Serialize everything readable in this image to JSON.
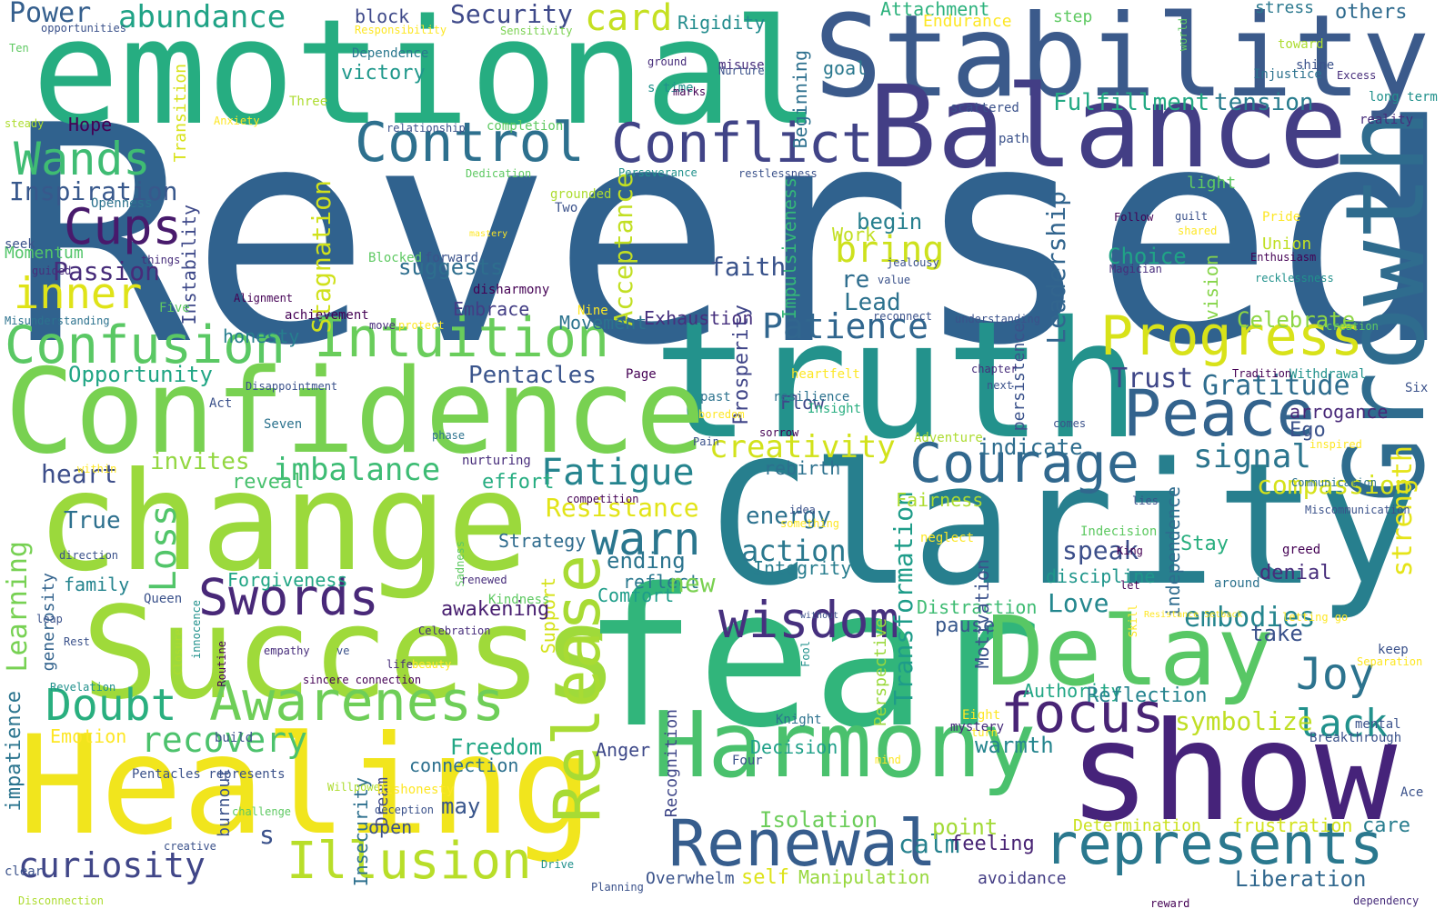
{
  "palette": {
    "background": "#ffffff",
    "shades": [
      "#440154",
      "#472d7b",
      "#3b528b",
      "#2c728e",
      "#21918c",
      "#28ae80",
      "#5ec962",
      "#addc30",
      "#fde725"
    ]
  },
  "words": [
    {
      "text": "Reversed",
      "color": "#30628e"
    },
    {
      "text": "emotional",
      "color": "#26ad81"
    },
    {
      "text": "Stability",
      "color": "#3b5a8b"
    },
    {
      "text": "Balance",
      "color": "#433e85"
    },
    {
      "text": "truth",
      "color": "#23928c"
    },
    {
      "text": "Growth",
      "color": "#2f6c8e"
    },
    {
      "text": "Clarity",
      "color": "#277f8e"
    },
    {
      "text": "Confidence",
      "color": "#78d151"
    },
    {
      "text": "change",
      "color": "#9bd93c"
    },
    {
      "text": "Success",
      "color": "#9fda3a"
    },
    {
      "text": "fear",
      "color": "#31b57b"
    },
    {
      "text": "show",
      "color": "#46237a"
    },
    {
      "text": "Healing",
      "color": "#f1e51d"
    },
    {
      "text": "Harmony",
      "color": "#4ac16d"
    },
    {
      "text": "Delay",
      "color": "#58c765"
    },
    {
      "text": "Control",
      "color": "#2d708e"
    },
    {
      "text": "Conflict",
      "color": "#414487"
    },
    {
      "text": "Peace",
      "color": "#33638d"
    },
    {
      "text": "Courage",
      "color": "#31688e"
    },
    {
      "text": "Intuition",
      "color": "#69cd5b"
    },
    {
      "text": "Confusion",
      "color": "#5ac864"
    },
    {
      "text": "Progress",
      "color": "#d8e219"
    },
    {
      "text": "Awareness",
      "color": "#6ece58"
    },
    {
      "text": "Renewal",
      "color": "#365d8d"
    },
    {
      "text": "represents",
      "color": "#2a788e"
    },
    {
      "text": "wisdom",
      "color": "#46307e"
    },
    {
      "text": "Swords",
      "color": "#482878"
    },
    {
      "text": "Release",
      "color": "#a8db34"
    },
    {
      "text": "Illusion",
      "color": "#b8de29"
    },
    {
      "text": "Doubt",
      "color": "#29af7f"
    },
    {
      "text": "focus",
      "color": "#482475"
    },
    {
      "text": "Cups",
      "color": "#481a6c"
    },
    {
      "text": "Wands",
      "color": "#3fbc73"
    },
    {
      "text": "inner",
      "color": "#dfe318"
    },
    {
      "text": "Patience",
      "color": "#31668e"
    },
    {
      "text": "Joy",
      "color": "#2c738e"
    },
    {
      "text": "warn",
      "color": "#2a768e"
    },
    {
      "text": "Fatigue",
      "color": "#25848e"
    },
    {
      "text": "curiosity",
      "color": "#404688"
    },
    {
      "text": "recovery",
      "color": "#4cc26c"
    },
    {
      "text": "abundance",
      "color": "#20a386"
    },
    {
      "text": "creativity",
      "color": "#d2e21b"
    },
    {
      "text": "imbalance",
      "color": "#3dbc74"
    },
    {
      "text": "lack",
      "color": "#21918c"
    },
    {
      "text": "Learning",
      "color": "#77d153"
    },
    {
      "text": "Loss",
      "color": "#52c569"
    },
    {
      "text": "Transformation",
      "color": "#1e9c89"
    },
    {
      "text": "Stagnation",
      "color": "#d0e11c"
    },
    {
      "text": "Acceptance",
      "color": "#c2df23"
    },
    {
      "text": "embodies",
      "color": "#25858e"
    },
    {
      "text": "bring",
      "color": "#cde11d"
    },
    {
      "text": "signal",
      "color": "#2b758e"
    },
    {
      "text": "Leadership",
      "color": "#32658e"
    },
    {
      "text": "Gratitude",
      "color": "#2e6d8e"
    },
    {
      "text": "Security",
      "color": "#3e4989"
    },
    {
      "text": "card",
      "color": "#c5e021"
    },
    {
      "text": "Fulfillment",
      "color": "#23a983"
    },
    {
      "text": "Inspiration",
      "color": "#38588c"
    },
    {
      "text": "compassion",
      "color": "#d5e21a"
    },
    {
      "text": "strength",
      "color": "#e5e419"
    },
    {
      "text": "symbolize",
      "color": "#c0df25"
    },
    {
      "text": "Resistance",
      "color": "#e2e418"
    },
    {
      "text": "Opportunity",
      "color": "#21a685"
    },
    {
      "text": "Pentacles",
      "color": "#3a548c"
    },
    {
      "text": "Passion",
      "color": "#472c7a"
    },
    {
      "text": "action",
      "color": "#2a788e"
    },
    {
      "text": "speak",
      "color": "#3c4f8a"
    },
    {
      "text": "Trust",
      "color": "#3f4788"
    },
    {
      "text": "Celebrate",
      "color": "#8ed645"
    },
    {
      "text": "Isolation",
      "color": "#6ccd5a"
    },
    {
      "text": "heart",
      "color": "#3d4e8a"
    },
    {
      "text": "Freedom",
      "color": "#22a785"
    },
    {
      "text": "impatience",
      "color": "#2b748e"
    },
    {
      "text": "Love",
      "color": "#24878e"
    },
    {
      "text": "Emotion",
      "color": "#fde725"
    },
    {
      "text": "Power",
      "color": "#355f8d"
    },
    {
      "text": "Momentum",
      "color": "#52c569"
    },
    {
      "text": "Hope",
      "color": "#440154"
    },
    {
      "text": "victory",
      "color": "#1f988b"
    },
    {
      "text": "Rigidity",
      "color": "#228c8d"
    },
    {
      "text": "tension",
      "color": "#287c8e"
    },
    {
      "text": "Attachment",
      "color": "#2db27d"
    },
    {
      "text": "Endurance",
      "color": "#fde725"
    },
    {
      "text": "stress",
      "color": "#2a788e"
    },
    {
      "text": "others",
      "color": "#2f6b8e"
    },
    {
      "text": "Choice",
      "color": "#20a386"
    },
    {
      "text": "vision",
      "color": "#86d549"
    },
    {
      "text": "Authority",
      "color": "#22a785"
    },
    {
      "text": "Reflection",
      "color": "#25838e"
    },
    {
      "text": "Liberation",
      "color": "#31688e"
    },
    {
      "text": "frustration",
      "color": "#d2e21b"
    },
    {
      "text": "care",
      "color": "#287d8e"
    },
    {
      "text": "Determination",
      "color": "#cae11f"
    },
    {
      "text": "Manipulation",
      "color": "#98d83e"
    },
    {
      "text": "avoidance",
      "color": "#433d84"
    },
    {
      "text": "Overwhelm",
      "color": "#3a538b"
    },
    {
      "text": "calm",
      "color": "#26818e"
    },
    {
      "text": "point",
      "color": "#a2da37"
    },
    {
      "text": "feeling",
      "color": "#482374"
    },
    {
      "text": "self",
      "color": "#dde318"
    },
    {
      "text": "Prosperity",
      "color": "#404588"
    },
    {
      "text": "Impulsiveness",
      "color": "#35b779"
    },
    {
      "text": "energy",
      "color": "#2c718e"
    },
    {
      "text": "ending",
      "color": "#2b748e"
    },
    {
      "text": "faith",
      "color": "#3a538b"
    },
    {
      "text": "Flow",
      "color": "#3f4889"
    },
    {
      "text": "rebirth",
      "color": "#2c718e"
    },
    {
      "text": "Strategy",
      "color": "#2f6c8e"
    },
    {
      "text": "Support",
      "color": "#d5e21a"
    },
    {
      "text": "reveal",
      "color": "#48c16e"
    },
    {
      "text": "invites",
      "color": "#93d741"
    },
    {
      "text": "effort",
      "color": "#26ad81"
    },
    {
      "text": "Embrace",
      "color": "#433e85"
    },
    {
      "text": "Movement",
      "color": "#2c738e"
    },
    {
      "text": "Exhaustion",
      "color": "#46307e"
    },
    {
      "text": "honesty",
      "color": "#277e8e"
    },
    {
      "text": "family",
      "color": "#25848e"
    },
    {
      "text": "generosity",
      "color": "#33638d"
    },
    {
      "text": "Forgiveness",
      "color": "#21a685"
    },
    {
      "text": "awakening",
      "color": "#481f70"
    },
    {
      "text": "reflect",
      "color": "#2a788e"
    },
    {
      "text": "Comfort",
      "color": "#1e9d89"
    },
    {
      "text": "new",
      "color": "#7ad151"
    },
    {
      "text": "True",
      "color": "#2d708e"
    },
    {
      "text": "may",
      "color": "#39568c"
    },
    {
      "text": "connection",
      "color": "#2d708e"
    },
    {
      "text": "Anger",
      "color": "#3e4989"
    },
    {
      "text": "Decision",
      "color": "#1fa088"
    },
    {
      "text": "Recognition",
      "color": "#3f4788"
    },
    {
      "text": "warmth",
      "color": "#25858e"
    },
    {
      "text": "open",
      "color": "#3b528b"
    },
    {
      "text": "Insecurity",
      "color": "#2d708e"
    },
    {
      "text": "burnout",
      "color": "#3b528b"
    },
    {
      "text": "Dream",
      "color": "#3e4989"
    },
    {
      "text": "Integrity",
      "color": "#287d8e"
    },
    {
      "text": "pause",
      "color": "#38588c"
    },
    {
      "text": "take",
      "color": "#3b528b"
    },
    {
      "text": "Distraction",
      "color": "#3fbc73"
    },
    {
      "text": "Motivation",
      "color": "#3b528b"
    },
    {
      "text": "discipline",
      "color": "#1f968b"
    },
    {
      "text": "independence",
      "color": "#2f6c8e"
    },
    {
      "text": "Stay",
      "color": "#29af7f"
    },
    {
      "text": "denial",
      "color": "#472d7b"
    },
    {
      "text": "Perspective",
      "color": "#9bd93c"
    },
    {
      "text": "Fairness",
      "color": "#addc30"
    },
    {
      "text": "indicate",
      "color": "#2e6d8e"
    },
    {
      "text": "persistence",
      "color": "#3b528b"
    },
    {
      "text": "arrogance",
      "color": "#482878"
    },
    {
      "text": "Ego",
      "color": "#3b528b"
    },
    {
      "text": "begin",
      "color": "#277f8e"
    },
    {
      "text": "Work",
      "color": "#c2df23"
    },
    {
      "text": "re",
      "color": "#2e6d8e"
    },
    {
      "text": "Lead",
      "color": "#2c728e"
    },
    {
      "text": "suggests",
      "color": "#2e6e8e"
    },
    {
      "text": "Instability",
      "color": "#3e4989"
    },
    {
      "text": "Beginning",
      "color": "#2d708e"
    },
    {
      "text": "goal",
      "color": "#2a788e"
    },
    {
      "text": "step",
      "color": "#5ec962"
    },
    {
      "text": "light",
      "color": "#5ec962"
    },
    {
      "text": "Union",
      "color": "#c0df25"
    },
    {
      "text": "Transition",
      "color": "#d8e219"
    },
    {
      "text": "block",
      "color": "#3e4989"
    },
    {
      "text": "Dependence",
      "color": "#2a788e"
    },
    {
      "text": "s",
      "color": "#3b528b"
    },
    {
      "text": "Ten",
      "color": "#5ec962"
    },
    {
      "text": "opportunities",
      "color": "#3b528b"
    },
    {
      "text": "Responsibility",
      "color": "#fde725"
    },
    {
      "text": "Sensitivity",
      "color": "#7ad151"
    },
    {
      "text": "ground",
      "color": "#472d7b"
    },
    {
      "text": "world",
      "color": "#5ec962"
    },
    {
      "text": "toward",
      "color": "#addc30"
    },
    {
      "text": "shine",
      "color": "#3b528b"
    },
    {
      "text": "Excess",
      "color": "#472d7b"
    },
    {
      "text": "long term",
      "color": "#21918c"
    },
    {
      "text": "reality",
      "color": "#472d7b"
    },
    {
      "text": "misuse",
      "color": "#472d7b"
    },
    {
      "text": "Nurture",
      "color": "#3b528b"
    },
    {
      "text": "s time",
      "color": "#21918c"
    },
    {
      "text": "marks",
      "color": "#440154"
    },
    {
      "text": "Injustice",
      "color": "#2c728e"
    },
    {
      "text": "Three",
      "color": "#addc30"
    },
    {
      "text": "relationship",
      "color": "#3b528b"
    },
    {
      "text": "completion",
      "color": "#5ec962"
    },
    {
      "text": "scattered",
      "color": "#3b528b"
    },
    {
      "text": "path",
      "color": "#3b528b"
    },
    {
      "text": "steady",
      "color": "#addc30"
    },
    {
      "text": "Anxiety",
      "color": "#fde725"
    },
    {
      "text": "Dedication",
      "color": "#5ec962"
    },
    {
      "text": "Perseverance",
      "color": "#21918c"
    },
    {
      "text": "restlessness",
      "color": "#3b528b"
    },
    {
      "text": "Openness",
      "color": "#2c728e"
    },
    {
      "text": "grounded",
      "color": "#addc30"
    },
    {
      "text": "Two",
      "color": "#3b528b"
    },
    {
      "text": "Follow",
      "color": "#440154"
    },
    {
      "text": "Pride",
      "color": "#fde725"
    },
    {
      "text": "guilt",
      "color": "#3b528b"
    },
    {
      "text": "shared",
      "color": "#fde725"
    },
    {
      "text": "mastery",
      "color": "#fde725"
    },
    {
      "text": "seek",
      "color": "#3b528b"
    },
    {
      "text": "guided",
      "color": "#472d7b"
    },
    {
      "text": "Blocked",
      "color": "#5ec962"
    },
    {
      "text": "forward",
      "color": "#3b528b"
    },
    {
      "text": "jealousy",
      "color": "#3b528b"
    },
    {
      "text": "Magician",
      "color": "#472d7b"
    },
    {
      "text": "Enthusiasm",
      "color": "#440154"
    },
    {
      "text": "recklessness",
      "color": "#21918c"
    },
    {
      "text": "things",
      "color": "#472d7b"
    },
    {
      "text": "disharmony",
      "color": "#440154"
    },
    {
      "text": "value",
      "color": "#3b528b"
    },
    {
      "text": "Alignment",
      "color": "#440154"
    },
    {
      "text": "Five",
      "color": "#5ec962"
    },
    {
      "text": "Nine",
      "color": "#fde725"
    },
    {
      "text": "achievement",
      "color": "#440154"
    },
    {
      "text": "move",
      "color": "#472d7b"
    },
    {
      "text": "protect",
      "color": "#fde725"
    },
    {
      "text": "reconnect",
      "color": "#3b528b"
    },
    {
      "text": "understanding",
      "color": "#3b528b"
    },
    {
      "text": "Misunderstanding",
      "color": "#2c728e"
    },
    {
      "text": "creation",
      "color": "#5ec962"
    },
    {
      "text": "Page",
      "color": "#440154"
    },
    {
      "text": "Disappointment",
      "color": "#3b528b"
    },
    {
      "text": "heartfelt",
      "color": "#fde725"
    },
    {
      "text": "chapter",
      "color": "#472d7b"
    },
    {
      "text": "Tradition",
      "color": "#440154"
    },
    {
      "text": "Withdrawal",
      "color": "#21918c"
    },
    {
      "text": "past",
      "color": "#2c728e"
    },
    {
      "text": "resilience",
      "color": "#2c728e"
    },
    {
      "text": "next",
      "color": "#3b528b"
    },
    {
      "text": "Six",
      "color": "#3b528b"
    },
    {
      "text": "Insight",
      "color": "#28ae80"
    },
    {
      "text": "comes",
      "color": "#3b528b"
    },
    {
      "text": "Act",
      "color": "#3b528b"
    },
    {
      "text": "Seven",
      "color": "#2c728e"
    },
    {
      "text": "boredom",
      "color": "#fde725"
    },
    {
      "text": "phase",
      "color": "#2c728e"
    },
    {
      "text": "sorrow",
      "color": "#440154"
    },
    {
      "text": "Adventure",
      "color": "#addc30"
    },
    {
      "text": "Pain",
      "color": "#3b528b"
    },
    {
      "text": "inspired",
      "color": "#fde725"
    },
    {
      "text": "nurturing",
      "color": "#472d7b"
    },
    {
      "text": "within",
      "color": "#fde725"
    },
    {
      "text": "competition",
      "color": "#440154"
    },
    {
      "text": "idea",
      "color": "#3b528b"
    },
    {
      "text": "lies",
      "color": "#3b528b"
    },
    {
      "text": "Communication",
      "color": "#2c728e"
    },
    {
      "text": "Miscommunication",
      "color": "#3b528b"
    },
    {
      "text": "something",
      "color": "#fde725"
    },
    {
      "text": "neglect",
      "color": "#fde725"
    },
    {
      "text": "Indecision",
      "color": "#5ec962"
    },
    {
      "text": "King",
      "color": "#440154"
    },
    {
      "text": "greed",
      "color": "#440154"
    },
    {
      "text": "direction",
      "color": "#3b528b"
    },
    {
      "text": "Sadness",
      "color": "#5ec962"
    },
    {
      "text": "renewed",
      "color": "#472d7b"
    },
    {
      "text": "Kindness",
      "color": "#5ec962"
    },
    {
      "text": "let",
      "color": "#440154"
    },
    {
      "text": "around",
      "color": "#2c728e"
    },
    {
      "text": "Queen",
      "color": "#3b528b"
    },
    {
      "text": "leap",
      "color": "#3b528b"
    },
    {
      "text": "Celebration",
      "color": "#472d7b"
    },
    {
      "text": "innocence",
      "color": "#21918c"
    },
    {
      "text": "without",
      "color": "#3b528b"
    },
    {
      "text": "Resistance Setback",
      "color": "#fde725"
    },
    {
      "text": "letting go",
      "color": "#fde725"
    },
    {
      "text": "Skill",
      "color": "#fde725"
    },
    {
      "text": "Rest",
      "color": "#3b528b"
    },
    {
      "text": "Closure",
      "color": "#addc30"
    },
    {
      "text": "empathy",
      "color": "#472d7b"
    },
    {
      "text": "ve",
      "color": "#3b528b"
    },
    {
      "text": "life",
      "color": "#472d7b"
    },
    {
      "text": "beauty",
      "color": "#fde725"
    },
    {
      "text": "Routine",
      "color": "#440154"
    },
    {
      "text": "Fool",
      "color": "#21918c"
    },
    {
      "text": "keep",
      "color": "#3b528b"
    },
    {
      "text": "Separation",
      "color": "#fde725"
    },
    {
      "text": "Revelation",
      "color": "#21918c"
    },
    {
      "text": "sincere connection",
      "color": "#440154"
    },
    {
      "text": "Eight",
      "color": "#fde725"
    },
    {
      "text": "turn",
      "color": "#fde725"
    },
    {
      "text": "mental",
      "color": "#3b528b"
    },
    {
      "text": "Breakthrough",
      "color": "#3b528b"
    },
    {
      "text": "Knight",
      "color": "#2c728e"
    },
    {
      "text": "mystery",
      "color": "#472d7b"
    },
    {
      "text": "Four",
      "color": "#3b528b"
    },
    {
      "text": "mind",
      "color": "#fde725"
    },
    {
      "text": "Pentacles represents",
      "color": "#3b528b"
    },
    {
      "text": "Willpower",
      "color": "#addc30"
    },
    {
      "text": "Dishonesty",
      "color": "#fde725"
    },
    {
      "text": "deception",
      "color": "#3b528b"
    },
    {
      "text": "challenge",
      "color": "#5ec962"
    },
    {
      "text": "build",
      "color": "#3b528b"
    },
    {
      "text": "Ace",
      "color": "#3b528b"
    },
    {
      "text": "creative",
      "color": "#3b528b"
    },
    {
      "text": "clear",
      "color": "#3b528b"
    },
    {
      "text": "Drive",
      "color": "#21918c"
    },
    {
      "text": "Disconnection",
      "color": "#addc30"
    },
    {
      "text": "Planning",
      "color": "#3b528b"
    },
    {
      "text": "reward",
      "color": "#440154"
    },
    {
      "text": "dependency",
      "color": "#472d7b"
    }
  ]
}
